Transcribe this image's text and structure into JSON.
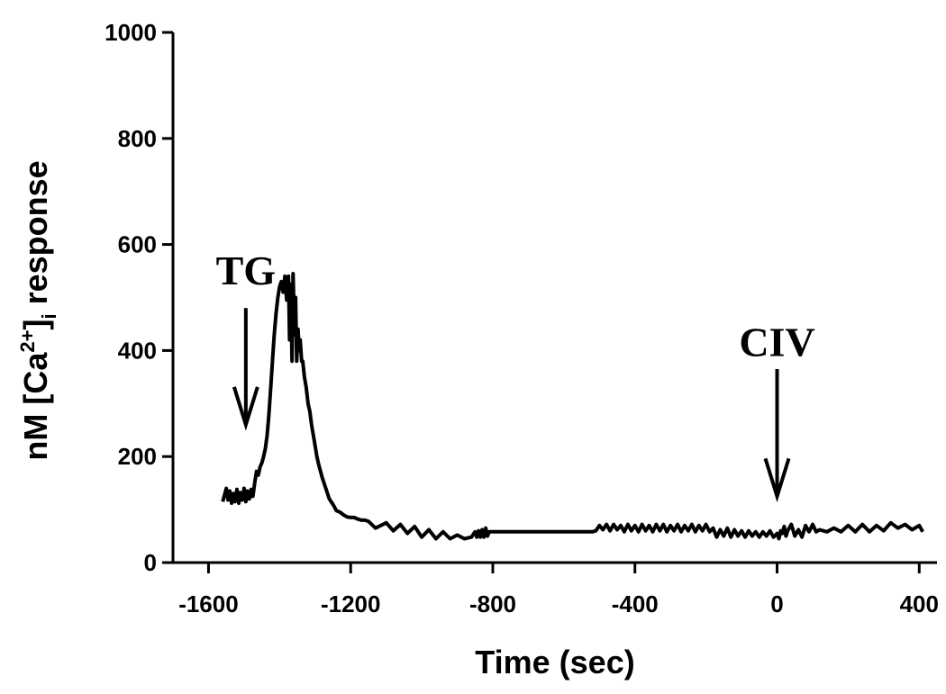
{
  "chart_data": {
    "type": "line",
    "title": "",
    "xlabel": "Time (sec)",
    "ylabel": {
      "prefix": "nM [Ca",
      "superscript": "2+",
      "middle": "]",
      "subscript": "i",
      "suffix": " response"
    },
    "xlim": [
      -1700,
      450
    ],
    "ylim": [
      0,
      1000
    ],
    "x_ticks": [
      -1600,
      -1200,
      -800,
      -400,
      0,
      400
    ],
    "x_tick_labels": [
      "-1600",
      "-1200",
      "-800",
      "-400",
      "0",
      "400"
    ],
    "y_ticks": [
      0,
      200,
      400,
      600,
      800,
      1000
    ],
    "y_tick_labels": [
      "0",
      "200",
      "400",
      "600",
      "800",
      "1000"
    ],
    "grid": false,
    "series": [
      {
        "name": "[Ca2+]i",
        "x": [
          -1560,
          -1550,
          -1545,
          -1540,
          -1535,
          -1530,
          -1525,
          -1520,
          -1515,
          -1510,
          -1505,
          -1500,
          -1495,
          -1490,
          -1485,
          -1480,
          -1475,
          -1470,
          -1465,
          -1460,
          -1455,
          -1450,
          -1445,
          -1440,
          -1435,
          -1430,
          -1425,
          -1420,
          -1415,
          -1410,
          -1405,
          -1400,
          -1395,
          -1390,
          -1385,
          -1380,
          -1375,
          -1372,
          -1368,
          -1365,
          -1362,
          -1358,
          -1355,
          -1352,
          -1348,
          -1345,
          -1342,
          -1338,
          -1335,
          -1330,
          -1325,
          -1320,
          -1315,
          -1310,
          -1305,
          -1300,
          -1295,
          -1290,
          -1280,
          -1270,
          -1260,
          -1250,
          -1240,
          -1230,
          -1220,
          -1210,
          -1200,
          -1190,
          -1180,
          -1170,
          -1160,
          -1150,
          -1130,
          -1100,
          -1080,
          -1060,
          -1040,
          -1020,
          -1000,
          -980,
          -960,
          -940,
          -920,
          -900,
          -880,
          -860,
          -850,
          -845,
          -840,
          -835,
          -830,
          -825,
          -820,
          -815,
          -810,
          -800,
          -790,
          -780,
          -760,
          -700,
          -600,
          -520,
          -510,
          -500,
          -490,
          -480,
          -470,
          -460,
          -450,
          -440,
          -430,
          -420,
          -410,
          -400,
          -390,
          -380,
          -370,
          -360,
          -350,
          -340,
          -330,
          -320,
          -310,
          -300,
          -290,
          -280,
          -270,
          -260,
          -250,
          -240,
          -230,
          -220,
          -210,
          -200,
          -190,
          -180,
          -170,
          -160,
          -150,
          -140,
          -130,
          -120,
          -110,
          -100,
          -90,
          -80,
          -70,
          -60,
          -50,
          -40,
          -30,
          -20,
          -10,
          0,
          5,
          10,
          15,
          20,
          25,
          30,
          40,
          50,
          60,
          70,
          80,
          90,
          100,
          110,
          120,
          140,
          160,
          180,
          200,
          220,
          240,
          260,
          280,
          300,
          320,
          340,
          360,
          380,
          400,
          410
        ],
        "values": [
          115,
          140,
          118,
          135,
          112,
          130,
          115,
          138,
          112,
          132,
          118,
          140,
          115,
          135,
          120,
          138,
          125,
          150,
          172,
          165,
          180,
          188,
          200,
          215,
          240,
          280,
          330,
          380,
          430,
          470,
          500,
          520,
          530,
          510,
          540,
          495,
          540,
          420,
          525,
          380,
          545,
          430,
          500,
          380,
          440,
          400,
          420,
          380,
          380,
          350,
          330,
          300,
          285,
          260,
          240,
          220,
          200,
          185,
          160,
          140,
          120,
          110,
          98,
          95,
          90,
          86,
          85,
          85,
          82,
          80,
          80,
          78,
          65,
          75,
          60,
          72,
          55,
          68,
          48,
          62,
          45,
          58,
          45,
          52,
          45,
          48,
          58,
          48,
          60,
          48,
          62,
          48,
          65,
          50,
          58,
          58,
          58,
          58,
          58,
          58,
          58,
          58,
          60,
          70,
          62,
          72,
          60,
          72,
          62,
          70,
          58,
          72,
          60,
          70,
          58,
          72,
          60,
          70,
          58,
          72,
          60,
          72,
          58,
          70,
          60,
          72,
          58,
          70,
          60,
          72,
          58,
          70,
          60,
          72,
          58,
          65,
          48,
          62,
          50,
          65,
          48,
          62,
          50,
          60,
          48,
          60,
          50,
          58,
          48,
          58,
          50,
          60,
          48,
          55,
          45,
          60,
          55,
          68,
          50,
          60,
          72,
          50,
          62,
          48,
          70,
          58,
          72,
          58,
          62,
          58,
          65,
          58,
          70,
          58,
          72,
          58,
          70,
          60,
          75,
          65,
          72,
          62,
          70,
          58
        ]
      }
    ],
    "annotations": [
      {
        "text": "TG",
        "x": -1495,
        "arrow_from": 480,
        "arrow_to": 260,
        "text_y": 525
      },
      {
        "text": "CIV",
        "x": 0,
        "arrow_from": 365,
        "arrow_to": 125,
        "text_y": 390
      }
    ]
  }
}
